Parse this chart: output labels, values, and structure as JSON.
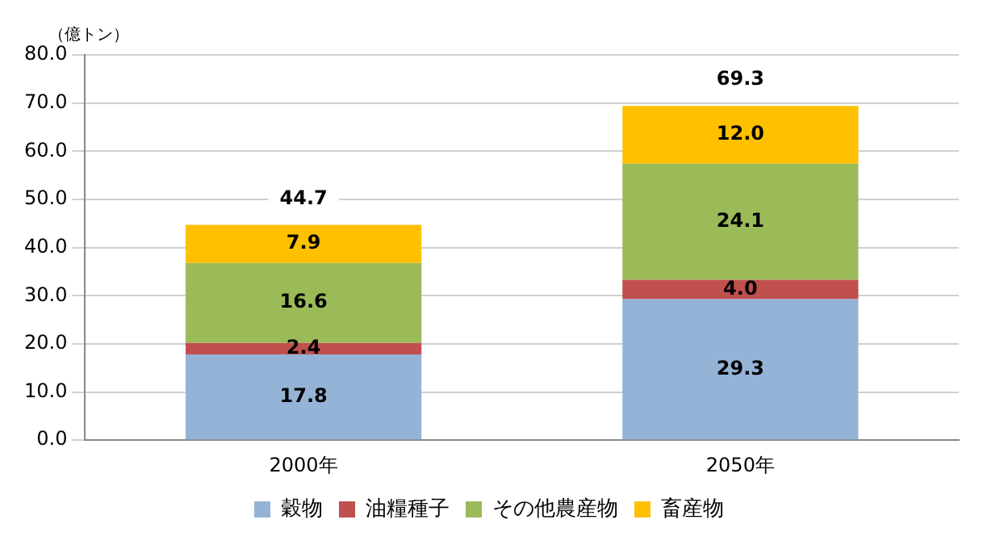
{
  "chart_data": {
    "type": "bar",
    "stacked": true,
    "ylabel": "（億トン）",
    "categories": [
      "2000年",
      "2050年"
    ],
    "series": [
      {
        "name": "穀物",
        "color": "#95b3d7",
        "values": [
          17.8,
          29.3
        ],
        "value_labels": [
          "17.8",
          "29.3"
        ]
      },
      {
        "name": "油糧種子",
        "color": "#c0504d",
        "values": [
          2.4,
          4.0
        ],
        "value_labels": [
          "2.4",
          "4.0"
        ]
      },
      {
        "name": "その他農産物",
        "color": "#9bbb59",
        "values": [
          16.6,
          24.1
        ],
        "value_labels": [
          "16.6",
          "24.1"
        ]
      },
      {
        "name": "畜産物",
        "color": "#ffc000",
        "values": [
          7.9,
          12.0
        ],
        "value_labels": [
          "7.9",
          "12.0"
        ]
      }
    ],
    "totals": [
      "44.7",
      "69.3"
    ],
    "ylim": [
      0,
      80
    ],
    "yticks": [
      {
        "value": 0,
        "label": "0.0"
      },
      {
        "value": 10,
        "label": "10.0"
      },
      {
        "value": 20,
        "label": "20.0"
      },
      {
        "value": 30,
        "label": "30.0"
      },
      {
        "value": 40,
        "label": "40.0"
      },
      {
        "value": 50,
        "label": "50.0"
      },
      {
        "value": 60,
        "label": "60.0"
      },
      {
        "value": 70,
        "label": "70.0"
      },
      {
        "value": 80,
        "label": "80.0"
      }
    ],
    "grid": "y",
    "legend": "bottom"
  }
}
